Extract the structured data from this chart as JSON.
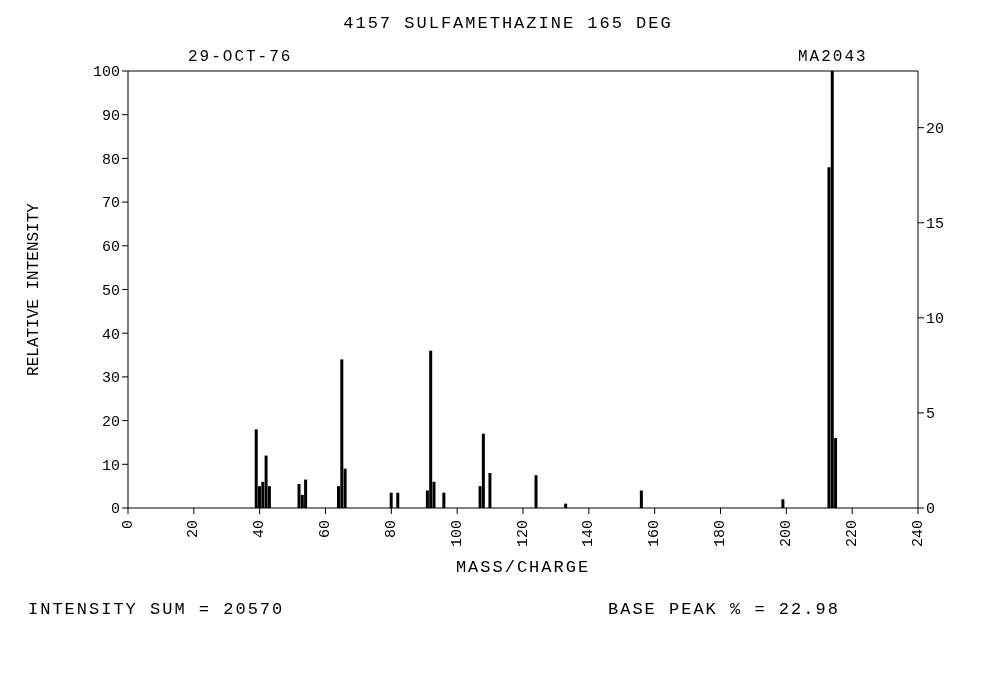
{
  "chart_data": {
    "type": "bar",
    "title": "4157 SULFAMETHAZINE 165 DEG",
    "xlabel": "MASS/CHARGE",
    "ylabel": "RELATIVE INTENSITY",
    "annotations": [
      "29-OCT-76",
      "MA2043",
      "INTENSITY SUM = 20570",
      "BASE PEAK % = 22.98"
    ],
    "x": [
      39,
      40,
      41,
      42,
      43,
      52,
      53,
      54,
      64,
      65,
      66,
      80,
      82,
      91,
      92,
      93,
      96,
      107,
      108,
      110,
      124,
      133,
      156,
      199,
      213,
      214,
      215
    ],
    "series": [
      {
        "color": "#000000",
        "values": [
          18,
          5,
          6,
          12,
          5,
          5.5,
          3,
          6.5,
          5,
          34,
          9,
          3.5,
          3.5,
          4,
          36,
          6,
          3.5,
          5,
          17,
          8,
          7.5,
          1,
          4,
          2,
          78,
          100,
          16
        ]
      }
    ],
    "xlim": [
      0,
      240
    ],
    "xticks": [
      0,
      20,
      40,
      60,
      80,
      100,
      120,
      140,
      160,
      180,
      200,
      220,
      240
    ],
    "ylim": [
      0,
      100
    ],
    "yticks": [
      0,
      10,
      20,
      30,
      40,
      50,
      60,
      70,
      80,
      90,
      100
    ],
    "y2lim": [
      0,
      22.98
    ],
    "y2ticks": [
      0,
      5,
      10,
      15,
      20
    ],
    "grid": false,
    "legend": false
  }
}
